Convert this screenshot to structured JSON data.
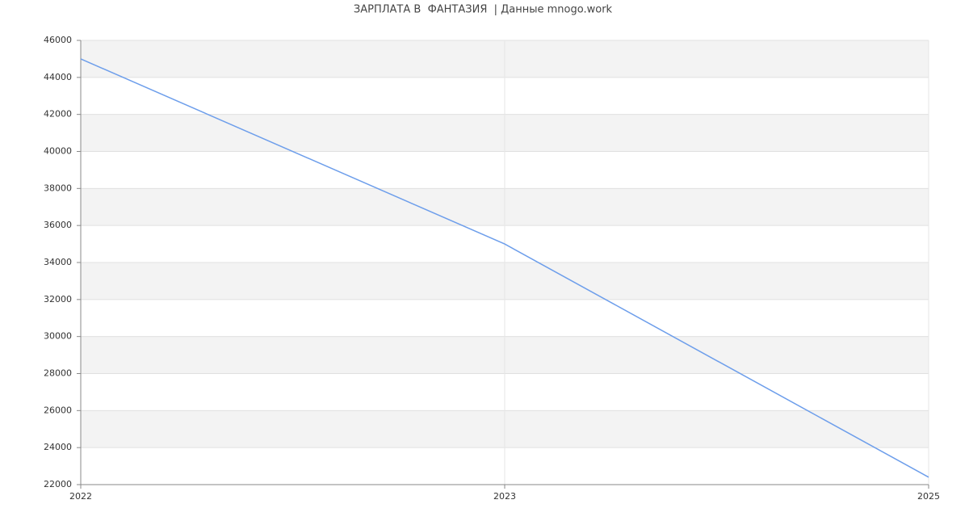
{
  "chart_data": {
    "type": "line",
    "title": "ЗАРПЛАТА В  ФАНТАЗИЯ  | Данные mnogo.work",
    "categories": [
      "2022",
      "2023",
      "2025"
    ],
    "series": [
      {
        "color": "#6d9eeb",
        "values": [
          45000,
          35000,
          22400
        ]
      }
    ],
    "ylim": [
      22000,
      46000
    ],
    "yticks": [
      22000,
      24000,
      26000,
      28000,
      30000,
      32000,
      34000,
      36000,
      38000,
      40000,
      42000,
      44000,
      46000
    ],
    "grid": true
  }
}
